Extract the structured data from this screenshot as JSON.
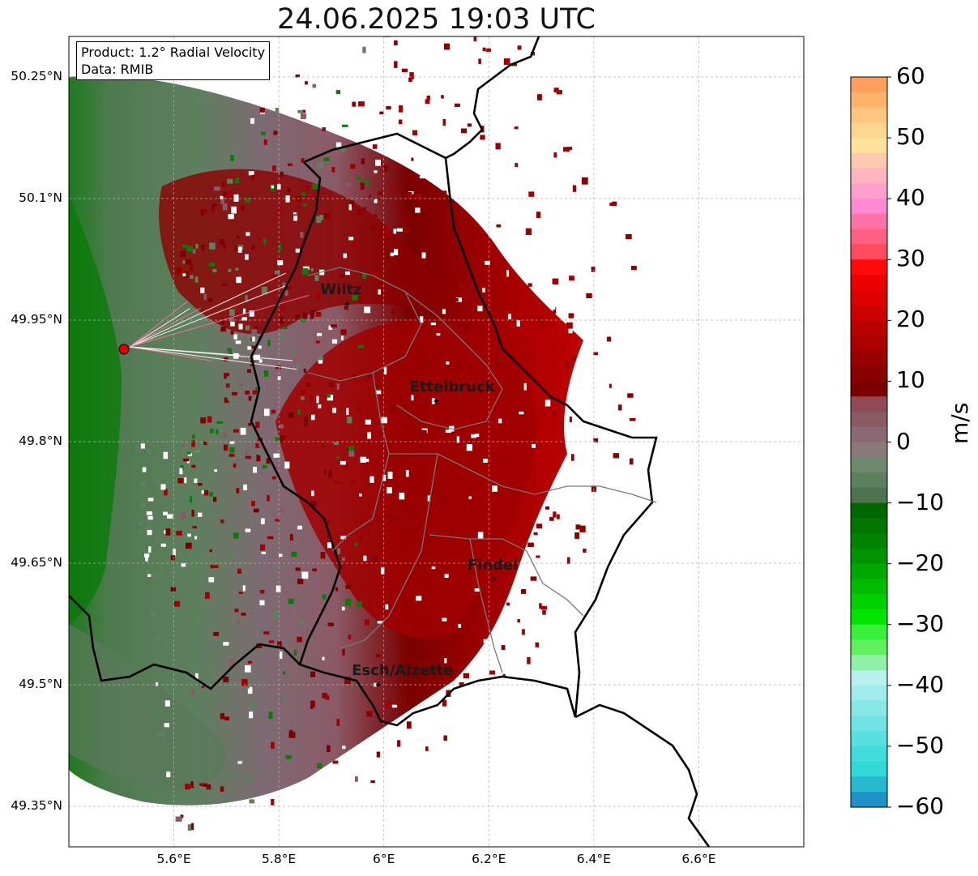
{
  "title": "24.06.2025 19:03 UTC",
  "info": {
    "product": "Product: 1.2° Radial Velocity",
    "data": "Data: RMIB"
  },
  "axes": {
    "y_ticks": [
      "50.25°N",
      "50.1°N",
      "49.95°N",
      "49.8°N",
      "49.65°N",
      "49.5°N",
      "49.35°N"
    ],
    "x_ticks": [
      "5.6°E",
      "5.8°E",
      "6°E",
      "6.2°E",
      "6.4°E",
      "6.6°E"
    ],
    "lon_range": [
      5.4,
      6.8
    ],
    "lat_range": [
      49.3,
      50.3
    ],
    "grid": true
  },
  "cities": [
    {
      "name": "Wiltz",
      "lon": 5.93,
      "lat": 49.97
    },
    {
      "name": "Ettelbruck",
      "lon": 6.1,
      "lat": 49.85
    },
    {
      "name": "Findel",
      "lon": 6.21,
      "lat": 49.63
    },
    {
      "name": "Esch/Alzette",
      "lon": 5.99,
      "lat": 49.5
    }
  ],
  "radar_site": {
    "lon": 5.505,
    "lat": 49.914,
    "color": "#e00000"
  },
  "colorbar": {
    "label": "m/s",
    "ticks": [
      "60",
      "50",
      "40",
      "30",
      "20",
      "10",
      "0",
      "−10",
      "−20",
      "−30",
      "−40",
      "−50",
      "−60"
    ],
    "range": [
      -60,
      60
    ],
    "colors_top_to_bottom": [
      "#ff9f5e",
      "#ffb46a",
      "#ffc580",
      "#ffd690",
      "#ffe39c",
      "#ffc8b0",
      "#ffb4c0",
      "#ff9fcc",
      "#ff88d0",
      "#ff72a8",
      "#ff5f80",
      "#ff4a60",
      "#ff0a0a",
      "#ee0000",
      "#dc0000",
      "#cc0000",
      "#bb0000",
      "#aa0000",
      "#990000",
      "#880000",
      "#7d0000",
      "#8f4a54",
      "#8a5a64",
      "#8a6a72",
      "#8a7a7c",
      "#6e8a6e",
      "#5e7f5e",
      "#4e734e",
      "#006600",
      "#007500",
      "#008400",
      "#009500",
      "#00a800",
      "#00bb00",
      "#00d000",
      "#00e400",
      "#38f038",
      "#60f060",
      "#90f0a8",
      "#b8f0f0",
      "#a0ecec",
      "#88e8e8",
      "#70e4e4",
      "#58e0e0",
      "#40dcdc",
      "#30d8d8",
      "#28b8d0",
      "#2090c8"
    ]
  }
}
